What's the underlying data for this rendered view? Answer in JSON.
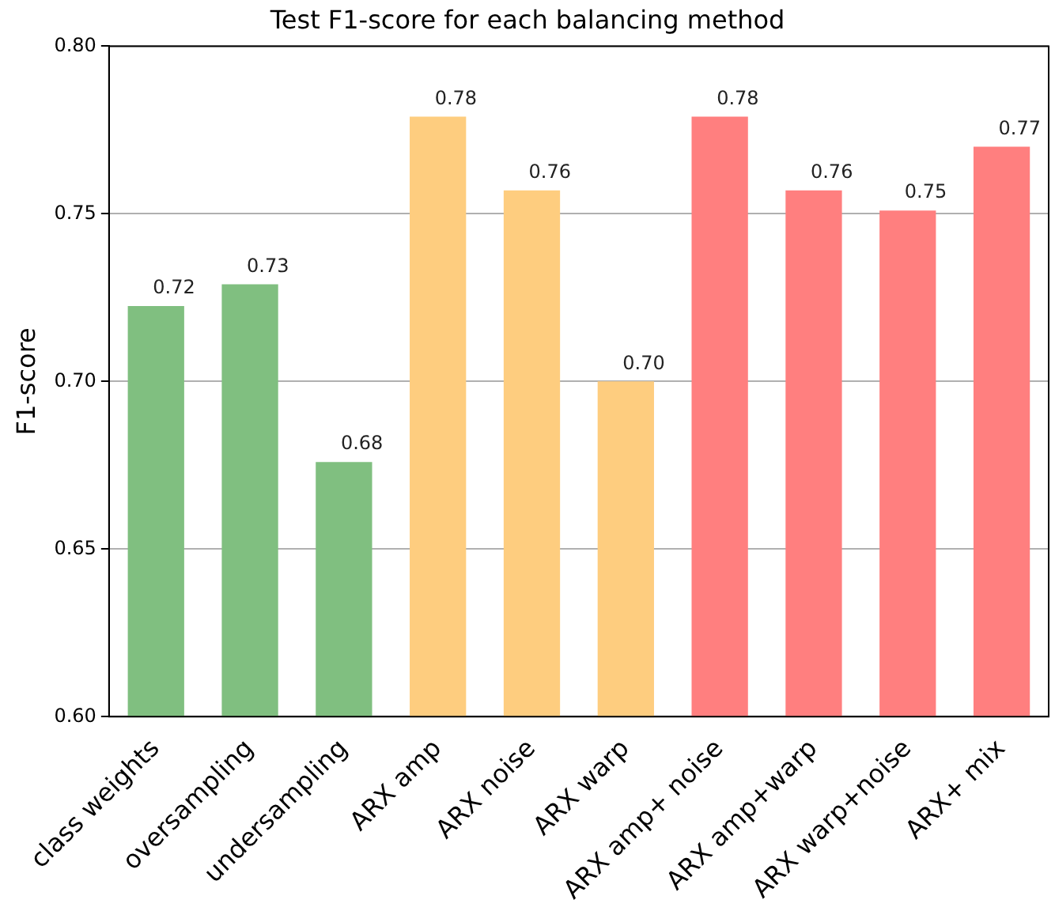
{
  "chart_data": {
    "type": "bar",
    "title": "Test F1-score for each balancing method",
    "ylabel": "F1-score",
    "categories": [
      "class weights",
      "oversampling",
      "undersampling",
      "ARX amp",
      "ARX noise",
      "ARX warp",
      "ARX amp+ noise",
      "ARX amp+warp",
      "ARX warp+noise",
      "ARX+ mix"
    ],
    "values": [
      0.7225,
      0.729,
      0.676,
      0.779,
      0.757,
      0.7,
      0.779,
      0.757,
      0.751,
      0.77
    ],
    "colors": [
      "#80bf80",
      "#80bf80",
      "#80bf80",
      "#fecd7f",
      "#fecd7f",
      "#fecd7f",
      "#ff7f7f",
      "#ff7f7f",
      "#ff7f7f",
      "#ff7f7f"
    ],
    "value_labels": [
      "0.72",
      "0.73",
      "0.68",
      "0.78",
      "0.76",
      "0.70",
      "0.78",
      "0.76",
      "0.75",
      "0.77"
    ],
    "ylim": [
      0.6,
      0.8
    ],
    "yticks": [
      {
        "value": 0.6,
        "label": "0.60"
      },
      0.65,
      {
        "value": 0.7,
        "label": "0.70"
      },
      0.75,
      {
        "value": 0.8,
        "label": "0.80"
      }
    ],
    "grid": "y"
  }
}
